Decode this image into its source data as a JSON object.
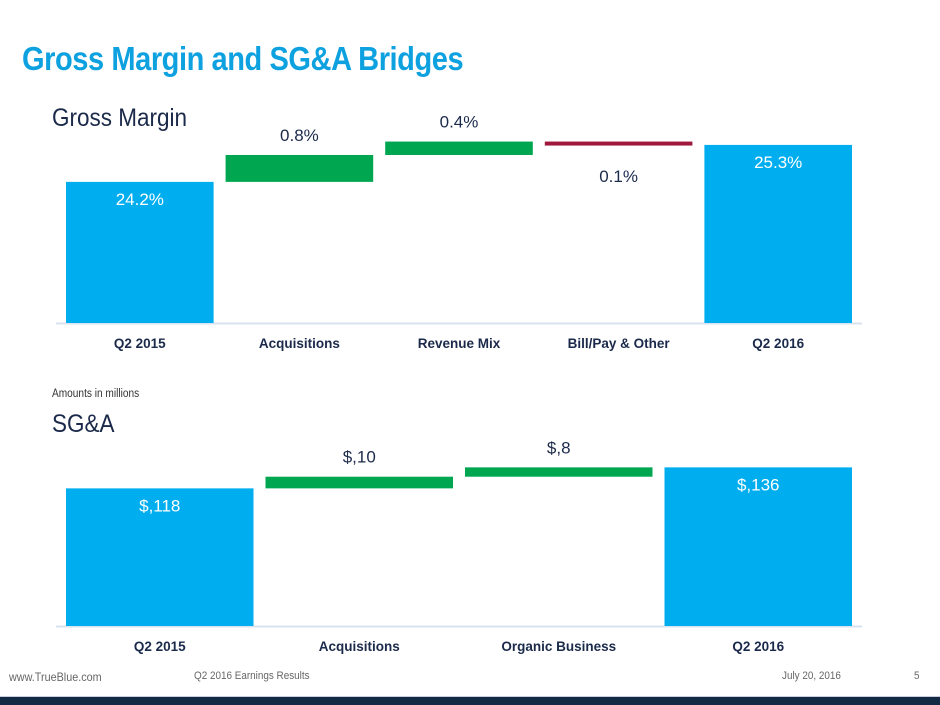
{
  "page": {
    "title": "Gross Margin and SG&A Bridges",
    "note": "Amounts in millions",
    "footer": {
      "website": "www.TrueBlue.com",
      "report": "Q2 2016 Earnings Results",
      "date": "July 20, 2016",
      "page_number": "5"
    }
  },
  "colors": {
    "total": "#00aeef",
    "increase": "#00a650",
    "decrease": "#a0183d",
    "label_dark": "#1b2a4a",
    "title": "#0ea1e0"
  },
  "chart_data": [
    {
      "type": "waterfall",
      "title": "Gross Margin",
      "categories": [
        "Q2 2015",
        "Acquisitions",
        "Revenue Mix",
        "Bill/Pay & Other",
        "Q2 2016"
      ],
      "values": [
        24.2,
        0.8,
        0.4,
        -0.1,
        25.3
      ],
      "kinds": [
        "total",
        "increase",
        "increase",
        "decrease",
        "total"
      ],
      "labels": [
        "24.2%",
        "0.8%",
        "0.4%",
        "0.1%",
        "25.3%"
      ],
      "unit": "%",
      "ylim": [
        20,
        26
      ],
      "grid": false
    },
    {
      "type": "waterfall",
      "title": "SG&A",
      "categories": [
        "Q2 2015",
        "Acquisitions",
        "Organic Business",
        "Q2 2016"
      ],
      "values": [
        118,
        10,
        8,
        136
      ],
      "kinds": [
        "total",
        "increase",
        "increase",
        "total"
      ],
      "labels": [
        "$,118",
        "$,10",
        "$,8",
        "$,136"
      ],
      "unit": "$M",
      "ylim": [
        0,
        140
      ],
      "grid": false
    }
  ]
}
